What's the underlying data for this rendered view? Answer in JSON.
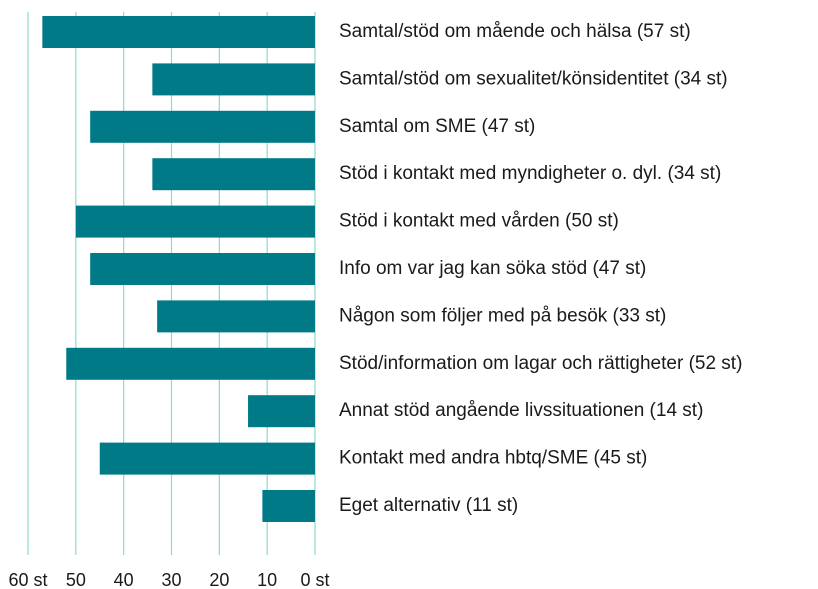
{
  "chart_data": {
    "type": "barh",
    "categories": [
      "Samtal/stöd om mående och hälsa (57 st)",
      "Samtal/stöd om sexualitet/könsidentitet (34 st)",
      "Samtal om SME (47 st)",
      "Stöd i kontakt med myndigheter o. dyl. (34 st)",
      "Stöd i kontakt med vården (50 st)",
      "Info om var jag kan söka stöd (47 st)",
      "Någon som följer med på besök (33 st)",
      "Stöd/information om lagar och rättigheter (52 st)",
      "Annat stöd angående livssituationen (14 st)",
      "Kontakt med andra hbtq/SME (45 st)",
      "Eget alternativ (11 st)"
    ],
    "values": [
      57,
      34,
      47,
      34,
      50,
      47,
      33,
      52,
      14,
      45,
      11
    ],
    "color": "#007a87",
    "xlim": [
      60,
      0
    ],
    "xticks": [
      {
        "value": 60,
        "label": "60 st"
      },
      50,
      40,
      30,
      20,
      10,
      {
        "value": 0,
        "label": "0 st"
      }
    ],
    "grid": true
  }
}
